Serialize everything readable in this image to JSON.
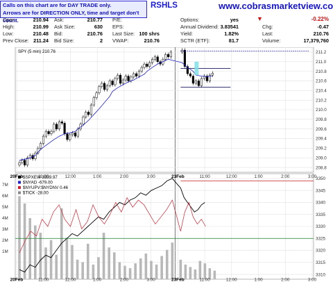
{
  "header": {
    "note_line1": "Calls on this chart are for DAY TRADE only.",
    "note_line2": "Arrows are for DIRECTION ONLY, time and target don't count.",
    "symbol": "RSHLS",
    "site": "www.cobrasmarketview.com",
    "open_label": "Open:",
    "open_value": "210.94",
    "high_label": "High:",
    "high_value": "210.99",
    "low_label": "Low:",
    "low_value": "210.48",
    "prev_close_label": "Prev Close:",
    "prev_close_value": "211.24",
    "ask_label": "Ask:",
    "ask_value": "210.77",
    "ask_size_label": "Ask Size:",
    "ask_size_value": "630",
    "bid_label": "Bid:",
    "bid_value": "210.76",
    "bid_size_label": "Bid Size:",
    "bid_size_value": "2",
    "pe_label": "P/E:",
    "pe_value": "",
    "eps_label": "EPS:",
    "eps_value": "",
    "last_size_label": "Last Size:",
    "last_size_value": "100 shrs",
    "vwap_label": "VWAP:",
    "vwap_value": "210.76",
    "options_label": "Options:",
    "options_value": "yes",
    "annual_div_label": "Annual Dividend:",
    "annual_div_value": "3.83541",
    "yield_label": "Yield:",
    "yield_value": "1.82%",
    "sctr_label": "SCTR (ETF):",
    "sctr_value": "81.7",
    "change_pct": "-0.22%",
    "chg_label": "Chg:",
    "chg_value": "-0.47",
    "last_label": "Last:",
    "last_value": "210.76",
    "volume_label": "Volume:",
    "volume_value": "17,379,760",
    "colors": {
      "down": "#d01010",
      "note_blue": "#1010c0"
    }
  },
  "chart_data": [
    {
      "type": "candlestick",
      "legend": "SPY (5 min) 210.76",
      "x_ticks": [
        "20Feb",
        "11:00",
        "12:00",
        "1:00",
        "2:00",
        "3:00",
        "23Feb",
        "11:00",
        "12:00",
        "1:00",
        "2:00",
        "3:00"
      ],
      "y_ticks": [
        208.8,
        209.0,
        209.2,
        209.4,
        209.6,
        209.8,
        210.0,
        210.2,
        210.4,
        210.6,
        210.8,
        211.0,
        211.2
      ],
      "ylim": [
        208.7,
        211.3
      ],
      "closes": [
        208.9,
        208.95,
        208.85,
        209.0,
        209.05,
        208.98,
        209.1,
        209.2,
        209.3,
        209.45,
        209.55,
        209.5,
        209.55,
        209.7,
        209.6,
        209.75,
        209.72,
        209.5,
        209.38,
        209.48,
        209.52,
        209.45,
        209.6,
        209.7,
        209.85,
        209.95,
        209.9,
        210.1,
        210.25,
        210.35,
        210.48,
        210.55,
        210.42,
        210.5,
        210.6,
        210.52,
        210.65,
        210.72,
        210.55,
        210.62,
        210.7,
        210.6,
        210.68,
        210.75,
        210.7,
        210.8,
        210.88,
        210.95,
        210.9,
        210.98,
        211.05,
        211.1,
        211.0,
        210.95,
        211.05,
        211.15,
        211.1,
        211.2,
        211.24,
        210.9,
        210.75,
        210.7,
        210.55,
        210.6,
        210.5,
        210.65,
        210.7,
        210.6,
        210.72,
        210.76
      ],
      "ma_fast": [
        208.95,
        208.97,
        209.0,
        209.05,
        209.12,
        209.22,
        209.3,
        209.38,
        209.45,
        209.5,
        209.52,
        209.55,
        209.6,
        209.68,
        209.78,
        209.9,
        210.02,
        210.15,
        210.28,
        210.38,
        210.46,
        210.52,
        210.58,
        210.62,
        210.68,
        210.74,
        210.8,
        210.88,
        210.95,
        211.0,
        211.05,
        210.98,
        210.88,
        210.8,
        210.72,
        210.7,
        210.69,
        210.7
      ],
      "shapes": [
        {
          "kind": "resistance",
          "price": 211.22,
          "style": "dotted"
        },
        {
          "kind": "line",
          "price": 210.86
        },
        {
          "kind": "line",
          "price": 210.47
        },
        {
          "kind": "zone",
          "from": 210.72,
          "to": 211.0
        }
      ]
    },
    {
      "type": "line",
      "legend_items": [
        "$SPXEW 3339.97",
        "$NYAD -679.00",
        "$NYUPV:$NYDNV 0.46",
        "$TICK -28.00"
      ],
      "y_ticks_right": [
        3310,
        3315,
        3320,
        3325,
        3330,
        3335,
        3340,
        3345,
        3350
      ],
      "y_ticks_left": [
        "7M",
        "6M",
        "5M",
        "4M",
        "3M",
        "2M",
        "1M"
      ],
      "ylim": [
        3308,
        3352
      ],
      "spxew": [
        3312,
        3311,
        3314,
        3313,
        3316,
        3318,
        3317,
        3320,
        3323,
        3325,
        3327,
        3326,
        3328,
        3330,
        3332,
        3334,
        3333,
        3336,
        3338,
        3340,
        3339,
        3341,
        3342,
        3344,
        3343,
        3345,
        3346,
        3347,
        3349,
        3350,
        3346,
        3342,
        3340,
        3338,
        3336,
        3337,
        3339,
        3340
      ],
      "volume_m": [
        6.8,
        6.2,
        5.0,
        4.4,
        3.8,
        2.6,
        3.2,
        2.0,
        5.8,
        3.4,
        2.8,
        1.6,
        1.4,
        2.9,
        1.2,
        1.8,
        3.8,
        2.6,
        2.2,
        1.4,
        1.1,
        0.9,
        1.3,
        1.7,
        2.1,
        1.5,
        1.2,
        1.9,
        2.4,
        3.0,
        1.6,
        1.2,
        1.0,
        0.8,
        1.5,
        1.3,
        0.9,
        0.7
      ],
      "breadth": [
        3319,
        3324,
        3328,
        3326,
        3333,
        3330,
        3336,
        3339,
        3333,
        3330,
        3337,
        3329,
        3332,
        3339,
        3334,
        3331,
        3335,
        3340,
        3336,
        3342,
        3338,
        3341,
        3339,
        3335,
        3331,
        3334,
        3337,
        3341,
        3328,
        3336,
        3340,
        3334,
        3331,
        3333,
        3330
      ],
      "shapes": [
        {
          "kind": "line",
          "price": 3349
        },
        {
          "kind": "line",
          "price": 3325
        }
      ]
    }
  ]
}
